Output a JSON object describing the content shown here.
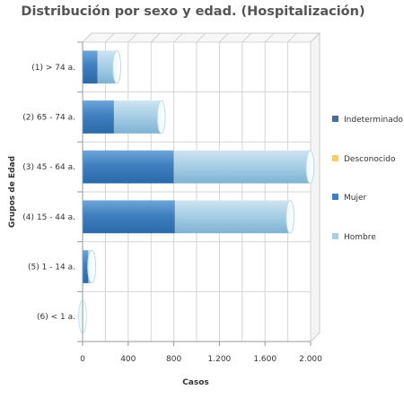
{
  "chart_data": {
    "type": "bar",
    "orientation": "horizontal",
    "stacked": true,
    "title": "Distribución por sexo y edad. (Hospitalización)",
    "xlabel": "Casos",
    "ylabel": "Grupos de Edad",
    "xlim": [
      0,
      2000
    ],
    "x_ticks": [
      "0",
      "400",
      "800",
      "1.200",
      "1.600",
      "2.000"
    ],
    "categories": [
      "(1) > 74 a.",
      "(2) 65 - 74 a.",
      "(3) 45 - 64 a.",
      "(4) 15 - 44 a.",
      "(5) 1 - 14 a.",
      "(6) < 1 a."
    ],
    "series": [
      {
        "name": "Indeterminado",
        "color": "#4a6e95",
        "values": [
          0,
          0,
          0,
          0,
          0,
          0
        ]
      },
      {
        "name": "Desconocido",
        "color": "#f5cd6a",
        "values": [
          0,
          0,
          0,
          0,
          0,
          0
        ]
      },
      {
        "name": "Mujer",
        "color": "#3f7fc0",
        "values": [
          130,
          275,
          800,
          810,
          50,
          0
        ]
      },
      {
        "name": "Hombre",
        "color": "#a8cfe6",
        "values": [
          170,
          415,
          1195,
          1010,
          30,
          0
        ]
      }
    ],
    "grid": true,
    "legend_position": "right"
  }
}
